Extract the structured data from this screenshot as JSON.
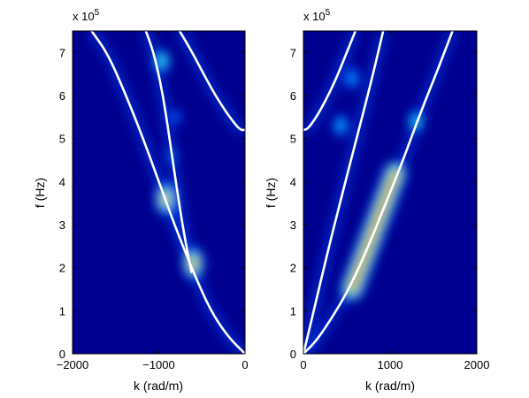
{
  "chart_data": [
    {
      "type": "heatmap",
      "id": "left",
      "xlabel": "k (rad/m)",
      "ylabel": "f (Hz)",
      "xlim": [
        -2000,
        0
      ],
      "ylim": [
        0,
        750000
      ],
      "xticks": [
        -2000,
        -1000,
        0
      ],
      "xtick_labels": [
        "−2000",
        "−1000",
        "0"
      ],
      "yticks": [
        0,
        100000,
        200000,
        300000,
        400000,
        500000,
        600000,
        700000
      ],
      "ytick_labels": [
        "0",
        "1",
        "2",
        "3",
        "4",
        "5",
        "6",
        "7"
      ],
      "y_multiplier_label": "x 10",
      "y_multiplier_exponent": "5",
      "background_color": "#00008f",
      "dispersion_curves": [
        {
          "k": [
            0,
            -200,
            -400,
            -600,
            -800,
            -1000,
            -1200,
            -1400,
            -1600,
            -1780
          ],
          "f": [
            0,
            40000,
            100000,
            190000,
            290000,
            400000,
            510000,
            610000,
            700000,
            750000
          ]
        },
        {
          "k": [
            -620,
            -700,
            -780,
            -860,
            -920,
            -980,
            -1060,
            -1150
          ],
          "f": [
            190000,
            270000,
            370000,
            480000,
            560000,
            630000,
            700000,
            750000
          ]
        },
        {
          "k": [
            0,
            -60,
            -160,
            -280,
            -400,
            -520,
            -640,
            -760
          ],
          "f": [
            520000,
            520000,
            545000,
            580000,
            620000,
            665000,
            710000,
            750000
          ]
        }
      ],
      "energy_spots": [
        {
          "k": -600,
          "f": 210000,
          "intensity": 1.0
        },
        {
          "k": -920,
          "f": 360000,
          "intensity": 0.95
        },
        {
          "k": -960,
          "f": 680000,
          "intensity": 0.55
        },
        {
          "k": -850,
          "f": 460000,
          "intensity": 0.3
        },
        {
          "k": -800,
          "f": 550000,
          "intensity": 0.25
        }
      ]
    },
    {
      "type": "heatmap",
      "id": "right",
      "xlabel": "k (rad/m)",
      "ylabel": "f (Hz)",
      "xlim": [
        0,
        2000
      ],
      "ylim": [
        0,
        750000
      ],
      "xticks": [
        0,
        1000,
        2000
      ],
      "xtick_labels": [
        "0",
        "1000",
        "2000"
      ],
      "yticks": [
        0,
        100000,
        200000,
        300000,
        400000,
        500000,
        600000,
        700000
      ],
      "ytick_labels": [
        "0",
        "1",
        "2",
        "3",
        "4",
        "5",
        "6",
        "7"
      ],
      "y_multiplier_label": "x 10",
      "y_multiplier_exponent": "5",
      "background_color": "#00008f",
      "dispersion_curves": [
        {
          "k": [
            0,
            150,
            350,
            550,
            750,
            950,
            1150,
            1350,
            1550,
            1720
          ],
          "f": [
            0,
            30000,
            90000,
            160000,
            250000,
            350000,
            450000,
            560000,
            660000,
            750000
          ]
        },
        {
          "k": [
            0,
            120,
            260,
            420,
            600,
            780,
            920
          ],
          "f": [
            0,
            100000,
            220000,
            350000,
            490000,
            630000,
            750000
          ]
        },
        {
          "k": [
            0,
            50,
            150,
            260,
            380,
            500,
            600
          ],
          "f": [
            520000,
            522000,
            550000,
            590000,
            640000,
            700000,
            750000
          ]
        }
      ],
      "energy_band": {
        "k_start": 560,
        "f_start": 150000,
        "k_end": 1060,
        "f_end": 420000,
        "intensity": 1.0
      },
      "energy_spots": [
        {
          "k": 1300,
          "f": 540000,
          "intensity": 0.5
        },
        {
          "k": 430,
          "f": 530000,
          "intensity": 0.4
        },
        {
          "k": 560,
          "f": 640000,
          "intensity": 0.35
        }
      ]
    }
  ]
}
